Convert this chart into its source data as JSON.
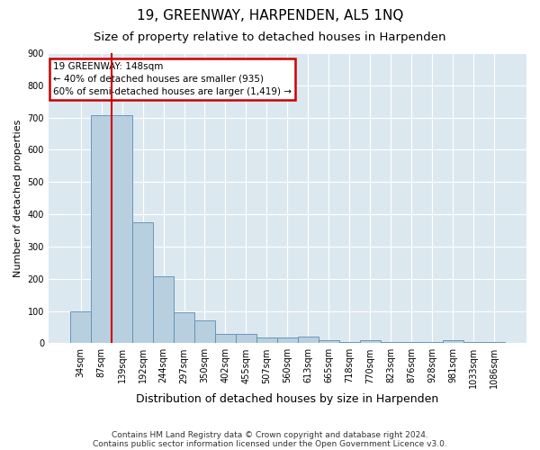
{
  "title": "19, GREENWAY, HARPENDEN, AL5 1NQ",
  "subtitle": "Size of property relative to detached houses in Harpenden",
  "xlabel": "Distribution of detached houses by size in Harpenden",
  "ylabel": "Number of detached properties",
  "footnote1": "Contains HM Land Registry data © Crown copyright and database right 2024.",
  "footnote2": "Contains public sector information licensed under the Open Government Licence v3.0.",
  "categories": [
    "34sqm",
    "87sqm",
    "139sqm",
    "192sqm",
    "244sqm",
    "297sqm",
    "350sqm",
    "402sqm",
    "455sqm",
    "507sqm",
    "560sqm",
    "613sqm",
    "665sqm",
    "718sqm",
    "770sqm",
    "823sqm",
    "876sqm",
    "928sqm",
    "981sqm",
    "1033sqm",
    "1086sqm"
  ],
  "values": [
    100,
    707,
    707,
    375,
    207,
    95,
    72,
    28,
    30,
    17,
    18,
    20,
    10,
    5,
    8,
    5,
    5,
    3,
    8,
    5,
    5
  ],
  "bar_color": "#b8cfe0",
  "bar_edge_color": "#5b8db0",
  "vline_color": "#cc0000",
  "vline_x_index": 2,
  "annotation_text": "19 GREENWAY: 148sqm\n← 40% of detached houses are smaller (935)\n60% of semi-detached houses are larger (1,419) →",
  "annotation_box_edge_color": "#cc0000",
  "ylim": [
    0,
    900
  ],
  "yticks": [
    0,
    100,
    200,
    300,
    400,
    500,
    600,
    700,
    800,
    900
  ],
  "fig_bg_color": "#ffffff",
  "plot_bg_color": "#dce8f0",
  "grid_color": "#ffffff",
  "title_fontsize": 11,
  "subtitle_fontsize": 9.5,
  "ylabel_fontsize": 8,
  "xlabel_fontsize": 9,
  "tick_fontsize": 7,
  "footnote_fontsize": 6.5
}
